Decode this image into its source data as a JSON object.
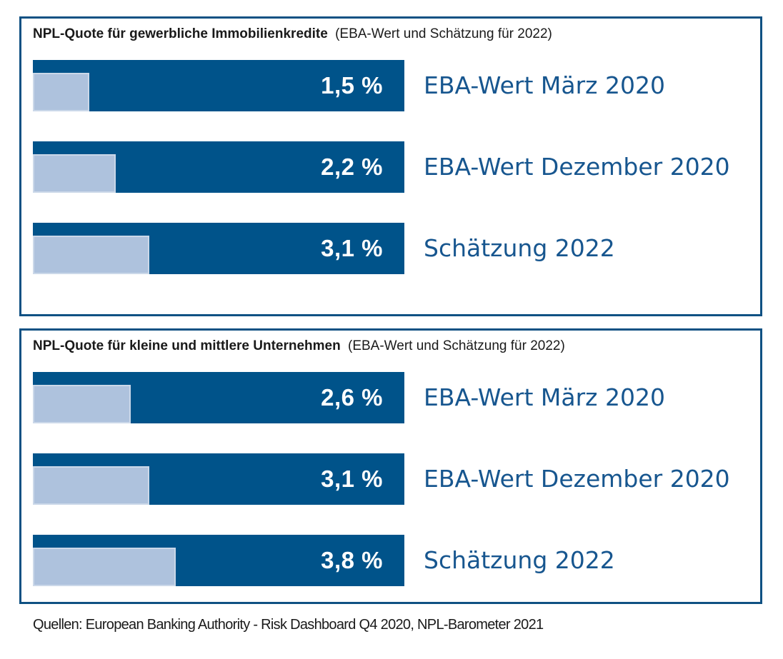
{
  "colors": {
    "bar_dark": "#00538A",
    "bar_light": "#AEC2DD",
    "bar_light_border": "#CBD8E9",
    "panel_border": "#0F5183",
    "category_label_blue": "#17568F",
    "value_text": "#FFFFFF",
    "title_text": "#1A1A1A"
  },
  "chart_data": [
    {
      "type": "bar",
      "orientation": "horizontal",
      "title": "NPL-Quote für gewerbliche Immobilienkredite",
      "subtitle": "(EBA-Wert und Schätzung für 2022)",
      "categories": [
        "EBA-Wert März 2020",
        "EBA-Wert Dezember 2020",
        "Schätzung 2022"
      ],
      "values": [
        1.5,
        2.2,
        3.1
      ],
      "value_labels": [
        "1,5 %",
        "2,2 %",
        "3,1 %"
      ],
      "unit": "%",
      "xlim": [
        0,
        9.9
      ],
      "grid": false,
      "legend": "none"
    },
    {
      "type": "bar",
      "orientation": "horizontal",
      "title": "NPL-Quote für kleine und mittlere Unternehmen",
      "subtitle": "(EBA-Wert und Schätzung für 2022)",
      "categories": [
        "EBA-Wert März 2020",
        "EBA-Wert Dezember 2020",
        "Schätzung 2022"
      ],
      "values": [
        2.6,
        3.1,
        3.8
      ],
      "value_labels": [
        "2,6 %",
        "3,1 %",
        "3,8 %"
      ],
      "unit": "%",
      "xlim": [
        0,
        9.9
      ],
      "grid": false,
      "legend": "none"
    }
  ],
  "footer": {
    "source_text": "Quellen: European Banking Authority - Risk Dashboard Q4 2020, NPL-Barometer 2021"
  }
}
